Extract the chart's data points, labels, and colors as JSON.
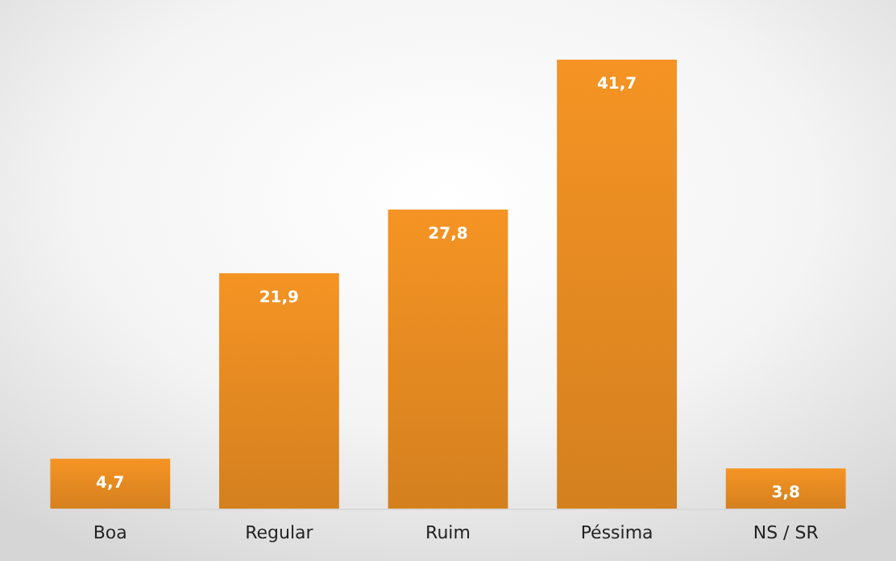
{
  "chart_data": {
    "type": "bar",
    "categories": [
      "Boa",
      "Regular",
      "Ruim",
      "Péssima",
      "NS / SR"
    ],
    "values": [
      4.7,
      21.9,
      27.8,
      41.7,
      3.8
    ],
    "value_labels": [
      "4,7",
      "21,9",
      "27,8",
      "41,7",
      "3,8"
    ],
    "color": "#e88c22"
  }
}
